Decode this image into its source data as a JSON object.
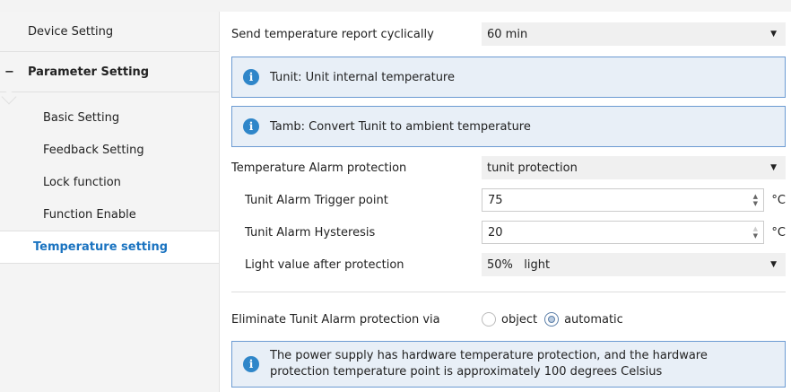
{
  "sidebar": {
    "device_setting": "Device Setting",
    "parameter_setting": "Parameter Setting",
    "collapse_symbol": "−",
    "sub_items": [
      "Basic Setting",
      "Feedback Setting",
      "Lock function",
      "Function Enable"
    ],
    "active": "Temperature setting"
  },
  "main": {
    "report": {
      "label": "Send temperature report cyclically",
      "value": "60 min"
    },
    "info1": "Tunit: Unit internal temperature",
    "info2": "Tamb: Convert Tunit to ambient temperature",
    "alarm": {
      "label": "Temperature Alarm protection",
      "value": "tunit protection"
    },
    "trigger": {
      "label": "Tunit Alarm Trigger point",
      "value": "75",
      "unit": "°C"
    },
    "hysteresis": {
      "label": "Tunit Alarm Hysteresis",
      "value": "20",
      "unit": "°C"
    },
    "light": {
      "label": "Light value after protection",
      "value": "50%   light"
    },
    "eliminate": {
      "label": "Eliminate Tunit Alarm protection via",
      "options": [
        "object",
        "automatic"
      ],
      "selected": "automatic"
    },
    "info3": "The power supply has hardware temperature protection, and the hardware protection temperature point is approximately 100 degrees Celsius",
    "info_icon": "i"
  },
  "colors": {
    "accent": "#1a73c0",
    "info_bg": "#e8eff7",
    "info_border": "#6c9bd2"
  }
}
